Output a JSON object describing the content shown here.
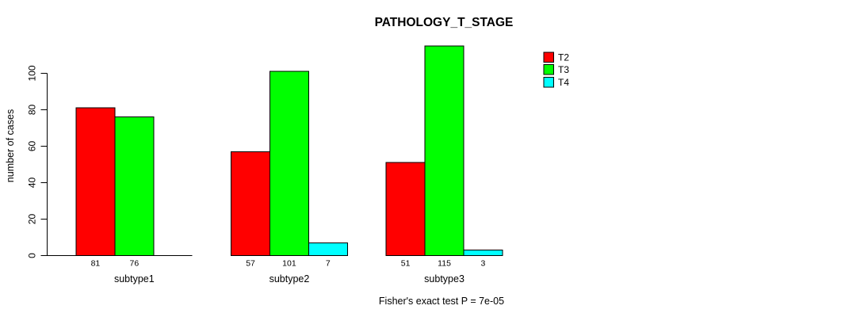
{
  "chart_data": {
    "type": "bar",
    "title": "PATHOLOGY_T_STAGE",
    "ylabel": "number of cases",
    "xlabel": "",
    "footnote": "Fisher's exact test P = 7e-05",
    "categories": [
      "subtype1",
      "subtype2",
      "subtype3"
    ],
    "series": [
      {
        "name": "T2",
        "color": "#ff0000",
        "values": [
          81,
          57,
          51
        ]
      },
      {
        "name": "T3",
        "color": "#00ff00",
        "values": [
          76,
          101,
          115
        ]
      },
      {
        "name": "T4",
        "color": "#00ffff",
        "values": [
          null,
          7,
          3
        ]
      }
    ],
    "yticks": [
      0,
      20,
      40,
      60,
      80,
      100
    ],
    "ylim": [
      0,
      115
    ],
    "grid": false,
    "legend_position": "right",
    "bar_value_labels_shown": true
  },
  "colors": {
    "background": "#ffffff",
    "axis": "#000000",
    "bar_outline": "#000000",
    "text": "#000000"
  }
}
